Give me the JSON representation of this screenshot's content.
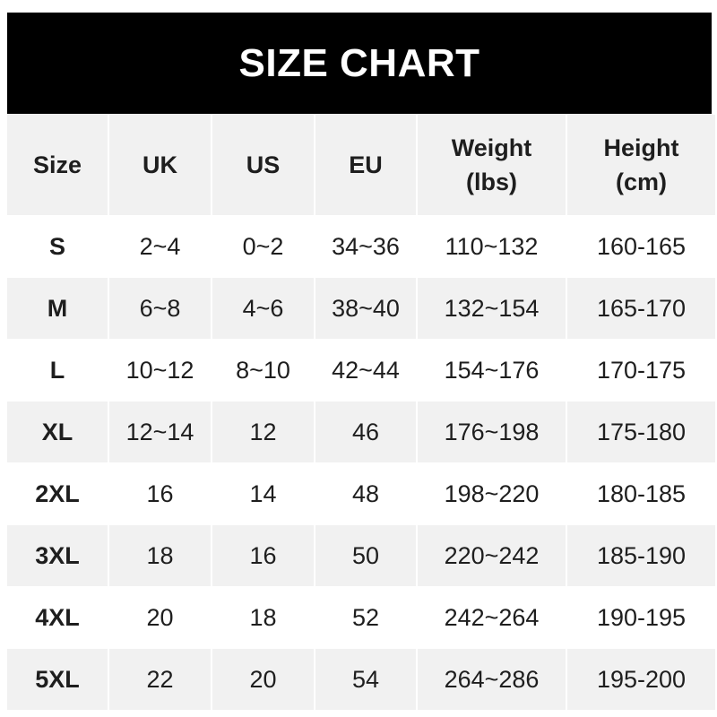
{
  "title": "SIZE CHART",
  "columns": [
    "Size",
    "UK",
    "US",
    "EU",
    "Weight\n(lbs)",
    "Height\n(cm)"
  ],
  "rows": [
    [
      "S",
      "2~4",
      "0~2",
      "34~36",
      "110~132",
      "160-165"
    ],
    [
      "M",
      "6~8",
      "4~6",
      "38~40",
      "132~154",
      "165-170"
    ],
    [
      "L",
      "10~12",
      "8~10",
      "42~44",
      "154~176",
      "170-175"
    ],
    [
      "XL",
      "12~14",
      "12",
      "46",
      "176~198",
      "175-180"
    ],
    [
      "2XL",
      "16",
      "14",
      "48",
      "198~220",
      "180-185"
    ],
    [
      "3XL",
      "18",
      "16",
      "50",
      "220~242",
      "185-190"
    ],
    [
      "4XL",
      "20",
      "18",
      "52",
      "242~264",
      "190-195"
    ],
    [
      "5XL",
      "22",
      "20",
      "54",
      "264~286",
      "195-200"
    ]
  ],
  "colors": {
    "header_bg": "#000000",
    "header_text": "#ffffff",
    "stripe": "#f1f1f1",
    "text": "#1e1e1e"
  }
}
